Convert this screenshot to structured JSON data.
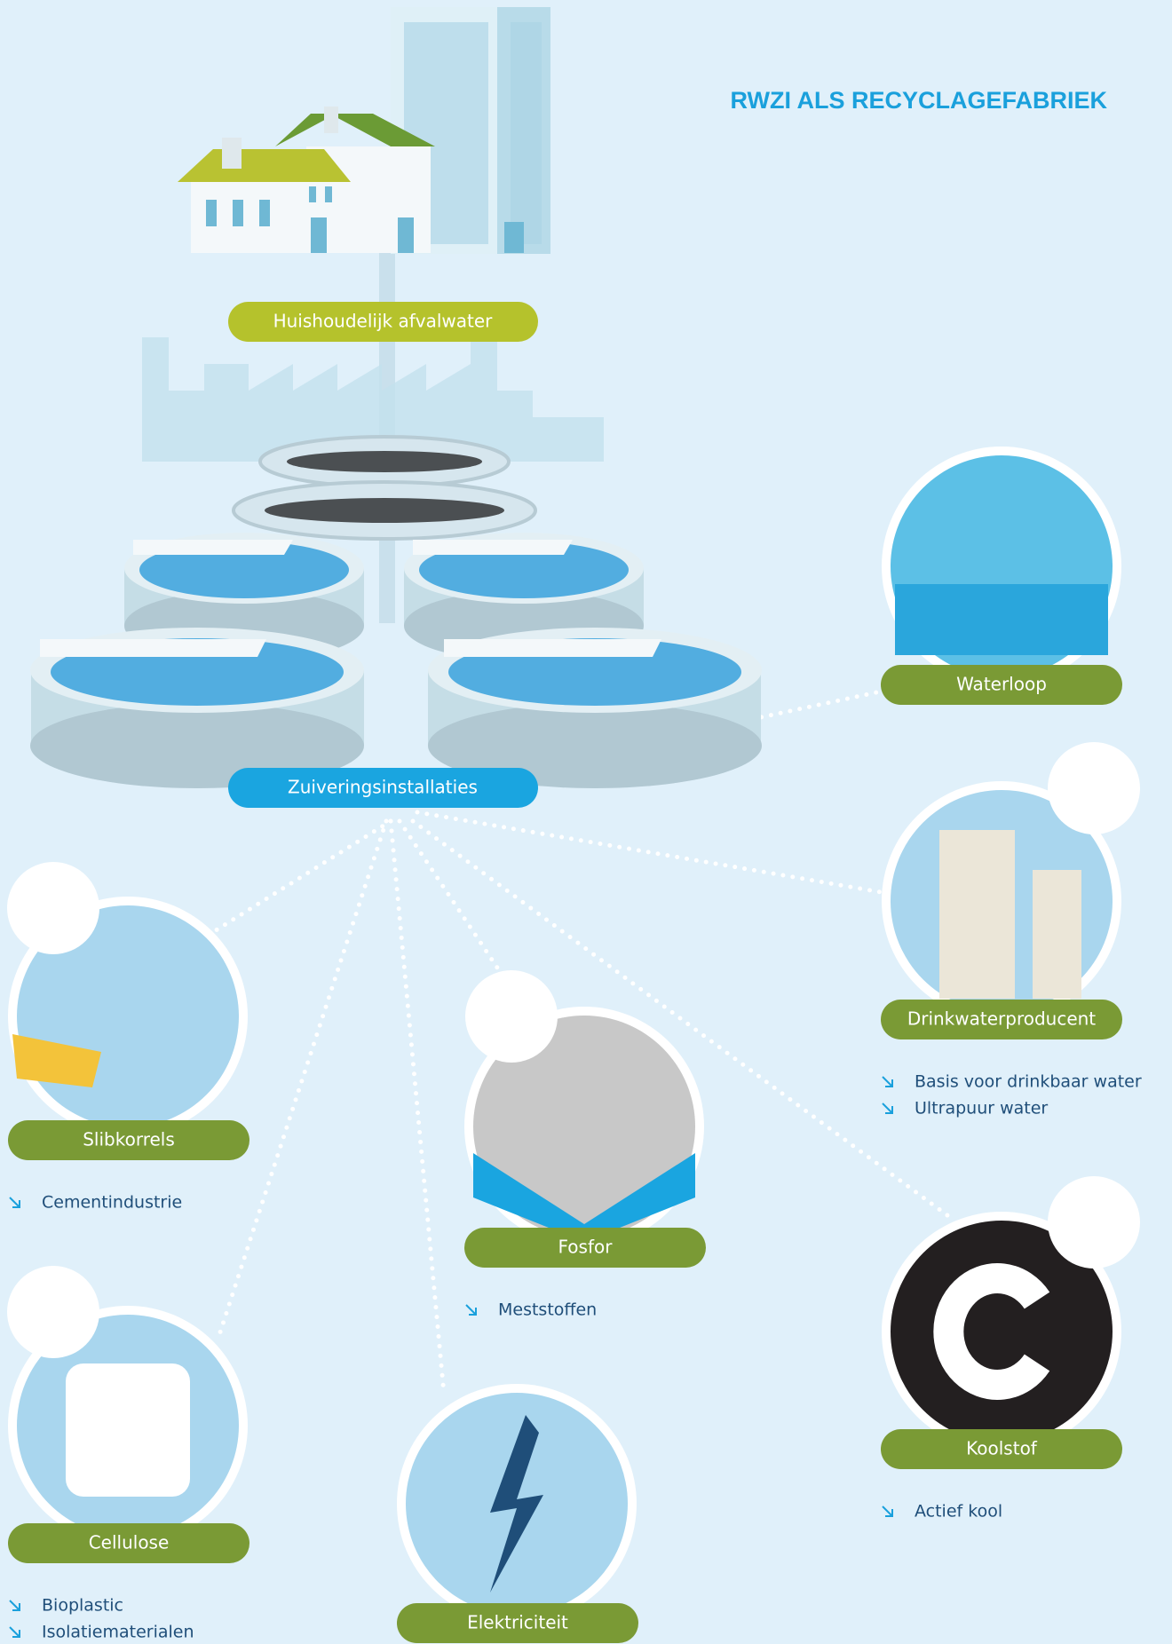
{
  "title": "RWZI ALS RECYCLAGEFABRIEK",
  "source": {
    "label": "Huishoudelijk afvalwater"
  },
  "plant": {
    "label": "Zuiveringsinstallaties"
  },
  "nodes": [
    {
      "label": "Waterloop"
    },
    {
      "label": "Drinkwaterproducent",
      "items": [
        "Basis voor drinkbaar water",
        "Ultrapuur water"
      ]
    },
    {
      "label": "Slibkorrels",
      "items": [
        "Cementindustrie"
      ]
    },
    {
      "label": "Fosfor",
      "items": [
        "Meststoffen"
      ]
    },
    {
      "label": "Koolstof",
      "items": [
        "Actief kool"
      ]
    },
    {
      "label": "Cellulose",
      "items": [
        "Bioplastic",
        "Isolatiematerialen"
      ]
    },
    {
      "label": "Elektriciteit"
    }
  ]
}
